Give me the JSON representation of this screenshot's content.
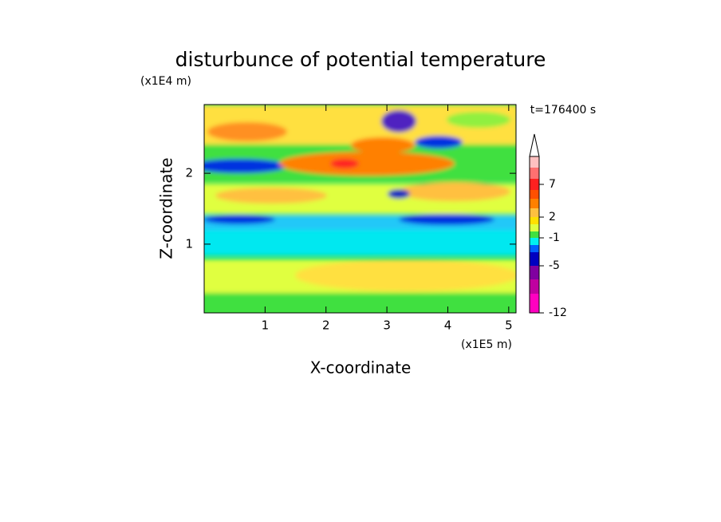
{
  "chart_data": {
    "type": "contour",
    "title": "disturbunce of potential temperature",
    "x_label": "X-coordinate",
    "y_label": "Z-coordinate",
    "x_unit": "(x1E5 m)",
    "y_unit": "(x1E4 m)",
    "annotation": "t=176400 s",
    "xlim": [
      0,
      5.12
    ],
    "xticks": [
      1,
      2,
      3,
      4,
      5
    ],
    "ylim": [
      0.03,
      2.97
    ],
    "yticks": [
      1,
      2
    ],
    "colorbar_ticks": [
      -12,
      -5,
      -1,
      2,
      7
    ]
  }
}
